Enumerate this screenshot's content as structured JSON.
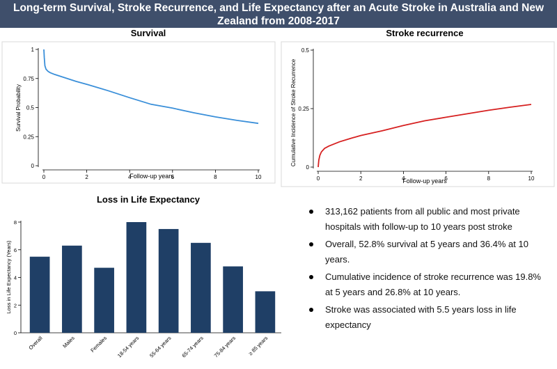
{
  "header": {
    "title": "Long-term Survival, Stroke Recurrence, and Life Expectancy after an Acute Stroke in Australia and New Zealand from 2008-2017"
  },
  "colors": {
    "header_bg": "#3f4f6b",
    "survival_line": "#3a8fd9",
    "recurrence_line": "#d62020",
    "bar_fill": "#1f3f66"
  },
  "chart_data": [
    {
      "type": "line",
      "title": "Survival",
      "xlabel": "Follow-up years",
      "ylabel": "Survival Probability",
      "xlim": [
        0,
        10
      ],
      "ylim": [
        0,
        1
      ],
      "x_ticks": [
        "0",
        "2",
        "4",
        "6",
        "8",
        "10"
      ],
      "y_ticks": [
        "0",
        "0.25",
        "0.5",
        "0.75",
        "1"
      ],
      "x": [
        0,
        0.02,
        0.05,
        0.1,
        0.2,
        0.3,
        0.5,
        1,
        1.5,
        2,
        3,
        4,
        5,
        6,
        7,
        8,
        9,
        10
      ],
      "y": [
        1.0,
        0.93,
        0.86,
        0.83,
        0.81,
        0.8,
        0.785,
        0.755,
        0.725,
        0.7,
        0.645,
        0.585,
        0.528,
        0.495,
        0.455,
        0.42,
        0.39,
        0.364
      ]
    },
    {
      "type": "line",
      "title": "Stroke recurrence",
      "xlabel": "Follow-up years",
      "ylabel": "Cumulative Incidence of Stroke Recurrence",
      "xlim": [
        0,
        10
      ],
      "ylim": [
        0,
        0.5
      ],
      "x_ticks": [
        "0",
        "2",
        "4",
        "6",
        "8",
        "10"
      ],
      "y_ticks": [
        "0",
        "0.25",
        "0.5"
      ],
      "x": [
        0,
        0.03,
        0.08,
        0.15,
        0.3,
        0.5,
        1,
        1.5,
        2,
        3,
        4,
        5,
        6,
        7,
        8,
        9,
        10
      ],
      "y": [
        0.0,
        0.03,
        0.05,
        0.065,
        0.08,
        0.09,
        0.108,
        0.122,
        0.135,
        0.155,
        0.178,
        0.198,
        0.213,
        0.228,
        0.243,
        0.256,
        0.268
      ]
    },
    {
      "type": "bar",
      "title": "Loss in Life Expectancy",
      "xlabel": "",
      "ylabel": "Loss in Life Expectancy (Years)",
      "ylim": [
        0,
        8
      ],
      "y_ticks": [
        "0",
        "2",
        "4",
        "6",
        "8"
      ],
      "categories": [
        "Overall",
        "Males",
        "Females",
        "18-54 years",
        "55-64 years",
        "65-74 years",
        "75-84 years",
        "≥ 85 years"
      ],
      "values": [
        5.5,
        6.3,
        4.7,
        8.0,
        7.5,
        6.5,
        4.8,
        3.0
      ]
    }
  ],
  "bullets": [
    "313,162 patients from all public and most private hospitals with follow-up to 10 years post stroke",
    "Overall, 52.8% survival at 5 years and 36.4% at 10 years.",
    "Cumulative incidence of stroke recurrence was 19.8% at 5 years and 26.8% at 10 years.",
    "Stroke was associated with 5.5 years loss in life expectancy"
  ]
}
